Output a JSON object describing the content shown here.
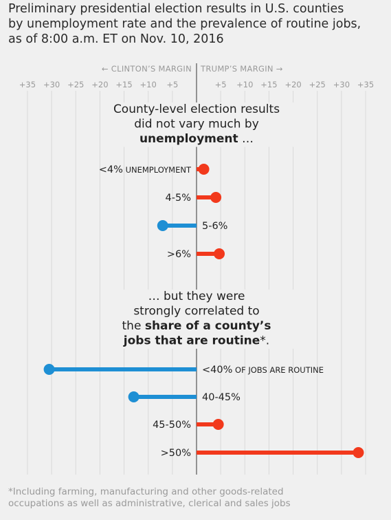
{
  "title_lines": [
    "Preliminary presidential election results in U.S. counties",
    "by unemployment rate and the prevalence of routine jobs,",
    "as of 8:00 a.m. ET on Nov. 10, 2016"
  ],
  "direction_labels": {
    "left": "← CLINTON’S MARGIN",
    "right": "TRUMP’S MARGIN →"
  },
  "footnote_lines": [
    "*Including farming, manufacturing and other goods-related",
    "occupations as well as administrative, clerical and sales jobs"
  ],
  "colors": {
    "trump": "#f2391c",
    "clinton": "#1e8fd4",
    "grid": "#d9d9d9",
    "zero_line": "#333333",
    "tick_text": "#999999",
    "background": "#f0f0f0"
  },
  "chart_data": {
    "type": "dot",
    "xlim": [
      -36,
      36
    ],
    "xticks": [
      -35,
      -30,
      -25,
      -20,
      -15,
      -10,
      -5,
      5,
      10,
      15,
      20,
      25,
      30,
      35
    ],
    "tick_labels": [
      "+35",
      "+30",
      "+25",
      "+20",
      "+15",
      "+10",
      "+5",
      "+5",
      "+10",
      "+15",
      "+20",
      "+25",
      "+30",
      "+35"
    ],
    "grid": true,
    "panels": [
      {
        "heading_lines": [
          [
            {
              "text": "County-level election results",
              "bold": false
            }
          ],
          [
            {
              "text": "did not vary much by",
              "bold": false
            }
          ],
          [
            {
              "text": "unemployment",
              "bold": true
            },
            {
              "text": " …",
              "bold": false
            }
          ]
        ],
        "rows": [
          {
            "label": "<4%",
            "suffix": " UNEMPLOYMENT",
            "margin": 1.5
          },
          {
            "label": "4-5%",
            "suffix": "",
            "margin": 4
          },
          {
            "label": "5-6%",
            "suffix": "",
            "margin": -7
          },
          {
            "label": ">6%",
            "suffix": "",
            "margin": 4.7
          }
        ]
      },
      {
        "heading_lines": [
          [
            {
              "text": "… but they were",
              "bold": false
            }
          ],
          [
            {
              "text": "strongly correlated to",
              "bold": false
            }
          ],
          [
            {
              "text": "the ",
              "bold": false
            },
            {
              "text": "share of a county’s",
              "bold": true
            }
          ],
          [
            {
              "text": "jobs that are routine",
              "bold": true
            },
            {
              "text": "*.",
              "bold": false
            }
          ]
        ],
        "rows": [
          {
            "label": "<40%",
            "suffix": " OF JOBS ARE ROUTINE",
            "margin": -30.5
          },
          {
            "label": "40-45%",
            "suffix": "",
            "margin": -13
          },
          {
            "label": "45-50%",
            "suffix": "",
            "margin": 4.5
          },
          {
            "label": ">50%",
            "suffix": "",
            "margin": 33.5
          }
        ]
      }
    ]
  }
}
